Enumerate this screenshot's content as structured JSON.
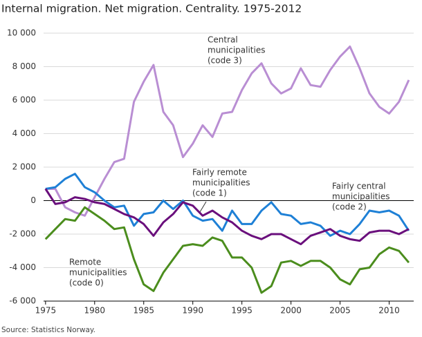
{
  "chart_data": {
    "type": "line",
    "title": "Internal migration. Net migration. Centrality. 1975-2012",
    "source": "Source: Statistics Norway.",
    "x": [
      1975,
      1976,
      1977,
      1978,
      1979,
      1980,
      1981,
      1982,
      1983,
      1984,
      1985,
      1986,
      1987,
      1988,
      1989,
      1990,
      1991,
      1992,
      1993,
      1994,
      1995,
      1996,
      1997,
      1998,
      1999,
      2000,
      2001,
      2002,
      2003,
      2004,
      2005,
      2006,
      2007,
      2008,
      2009,
      2010,
      2011,
      2012
    ],
    "xlim": [
      1974.8,
      2012.5
    ],
    "xticks": [
      1975,
      1980,
      1985,
      1990,
      1995,
      2000,
      2005,
      2010
    ],
    "ylim": [
      -6000,
      10000
    ],
    "yticks": [
      {
        "value": -6000,
        "label": "-6 000"
      },
      {
        "value": -4000,
        "label": "-4 000"
      },
      {
        "value": -2000,
        "label": "-2 000"
      },
      0,
      {
        "value": 2000,
        "label": "2 000"
      },
      {
        "value": 4000,
        "label": "4 000"
      },
      {
        "value": 6000,
        "label": "6 000"
      },
      {
        "value": 8000,
        "label": "8 000"
      },
      {
        "value": 10000,
        "label": "10 000"
      }
    ],
    "grid": true,
    "series": [
      {
        "label_lines": [
          "Central",
          "municipalities",
          "(code 3)"
        ],
        "color": "#b98ed3",
        "values": [
          700,
          700,
          -400,
          -700,
          -900,
          200,
          1300,
          2300,
          2500,
          5900,
          7100,
          8100,
          5300,
          4500,
          2600,
          3400,
          4500,
          3800,
          5200,
          5300,
          6600,
          7600,
          8200,
          7000,
          6400,
          6700,
          7900,
          6900,
          6800,
          7800,
          8600,
          9200,
          7900,
          6400,
          5600,
          5200,
          5900,
          7200
        ]
      },
      {
        "label_lines": [
          "Fairly central",
          "municipalities",
          "(code 2)"
        ],
        "color": "#1e80d6",
        "values": [
          700,
          800,
          1300,
          1600,
          800,
          500,
          0,
          -400,
          -300,
          -1500,
          -800,
          -700,
          0,
          -500,
          0,
          -900,
          -1200,
          -1100,
          -1800,
          -600,
          -1400,
          -1400,
          -600,
          -100,
          -800,
          -900,
          -1400,
          -1300,
          -1500,
          -2100,
          -1800,
          -2000,
          -1400,
          -600,
          -700,
          -600,
          -900,
          -1800
        ]
      },
      {
        "label_lines": [
          "Fairly remote",
          "municipalities",
          "(code 1)"
        ],
        "color": "#6a0f7c",
        "values": [
          700,
          -200,
          -100,
          200,
          100,
          -100,
          -200,
          -500,
          -800,
          -1000,
          -1400,
          -2100,
          -1300,
          -800,
          -100,
          -300,
          -900,
          -600,
          -1000,
          -1300,
          -1800,
          -2100,
          -2300,
          -2000,
          -2000,
          -2300,
          -2600,
          -2100,
          -1900,
          -1700,
          -2100,
          -2300,
          -2400,
          -1900,
          -1800,
          -1800,
          -2000,
          -1700
        ]
      },
      {
        "label_lines": [
          "Remote",
          "municipalities",
          "(code 0)"
        ],
        "color": "#4b8d1d",
        "values": [
          -2300,
          -1700,
          -1100,
          -1200,
          -400,
          -800,
          -1200,
          -1700,
          -1600,
          -3500,
          -5000,
          -5400,
          -4300,
          -3500,
          -2700,
          -2600,
          -2700,
          -2200,
          -2400,
          -3400,
          -3400,
          -4000,
          -5500,
          -5100,
          -3700,
          -3600,
          -3900,
          -3600,
          -3600,
          -4000,
          -4700,
          -5000,
          -4100,
          -4000,
          -3200,
          -2800,
          -3000,
          -3700
        ]
      }
    ]
  }
}
